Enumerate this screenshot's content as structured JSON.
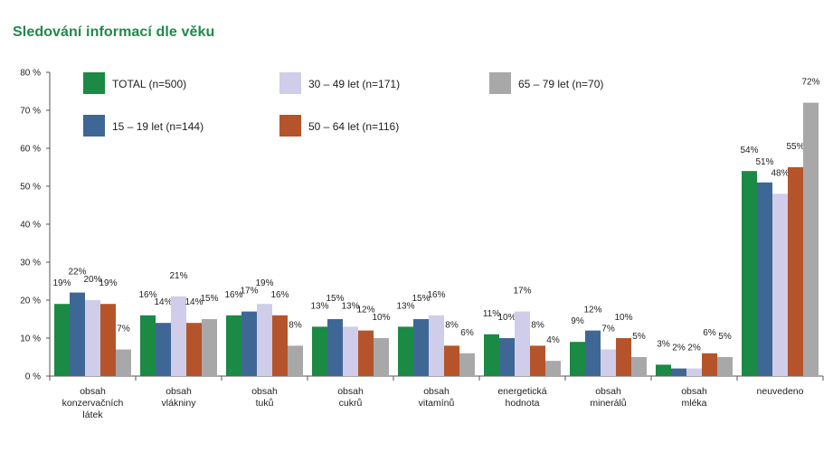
{
  "page": {
    "title": "Sledování informací dle věku"
  },
  "chart_data": {
    "type": "bar",
    "title": "Sledování informací dle věku",
    "xlabel": "",
    "ylabel": "",
    "ylim": [
      0,
      80
    ],
    "yticks": [
      0,
      10,
      20,
      30,
      40,
      50,
      60,
      70,
      80
    ],
    "ytick_labels": [
      "0 %",
      "10 %",
      "20 %",
      "30 %",
      "40 %",
      "50 %",
      "60 %",
      "70 %",
      "80 %"
    ],
    "grid": false,
    "legend_position": "top",
    "categories": [
      [
        "obsah",
        "konzervačních",
        "látek"
      ],
      [
        "obsah",
        "vlákniny"
      ],
      [
        "obsah",
        "tuků"
      ],
      [
        "obsah",
        "cukrů"
      ],
      [
        "obsah",
        "vitamínů"
      ],
      [
        "energetická",
        "hodnota"
      ],
      [
        "obsah",
        "minerálů"
      ],
      [
        "obsah",
        "mléka"
      ],
      [
        "neuvedeno"
      ]
    ],
    "series": [
      {
        "name": "TOTAL (n=500)",
        "color": "#1a8a45",
        "values": [
          19,
          16,
          16,
          13,
          13,
          11,
          9,
          3,
          54
        ],
        "labels": [
          "19%",
          "16%",
          "16%",
          "13%",
          "13%",
          "11%",
          "9%",
          "3%",
          "54%"
        ]
      },
      {
        "name": "15 – 19 let (n=144)",
        "color": "#3f6796",
        "values": [
          22,
          14,
          17,
          15,
          15,
          10,
          12,
          2,
          51
        ],
        "labels": [
          "22%",
          "14%",
          "17%",
          "15%",
          "15%",
          "10%",
          "12%",
          "2%",
          "51%"
        ]
      },
      {
        "name": "30 – 49 let (n=171)",
        "color": "#cfcde9",
        "values": [
          20,
          21,
          19,
          13,
          16,
          17,
          7,
          2,
          48
        ],
        "labels": [
          "20%",
          "21%",
          "19%",
          "13%",
          "16%",
          "17%",
          "7%",
          "2%",
          "48%"
        ]
      },
      {
        "name": "50 – 64 let (n=116)",
        "color": "#b5542b",
        "values": [
          19,
          14,
          16,
          12,
          8,
          8,
          10,
          6,
          55
        ],
        "labels": [
          "19%",
          "14%",
          "16%",
          "12%",
          "8%",
          "8%",
          "10%",
          "6%",
          "55%"
        ]
      },
      {
        "name": "65 – 79 let (n=70)",
        "color": "#a8a8a8",
        "values": [
          7,
          15,
          8,
          10,
          6,
          4,
          5,
          5,
          72
        ],
        "labels": [
          "7%",
          "15%",
          "8%",
          "10%",
          "6%",
          "4%",
          "5%",
          "5%",
          "72%"
        ]
      }
    ]
  }
}
